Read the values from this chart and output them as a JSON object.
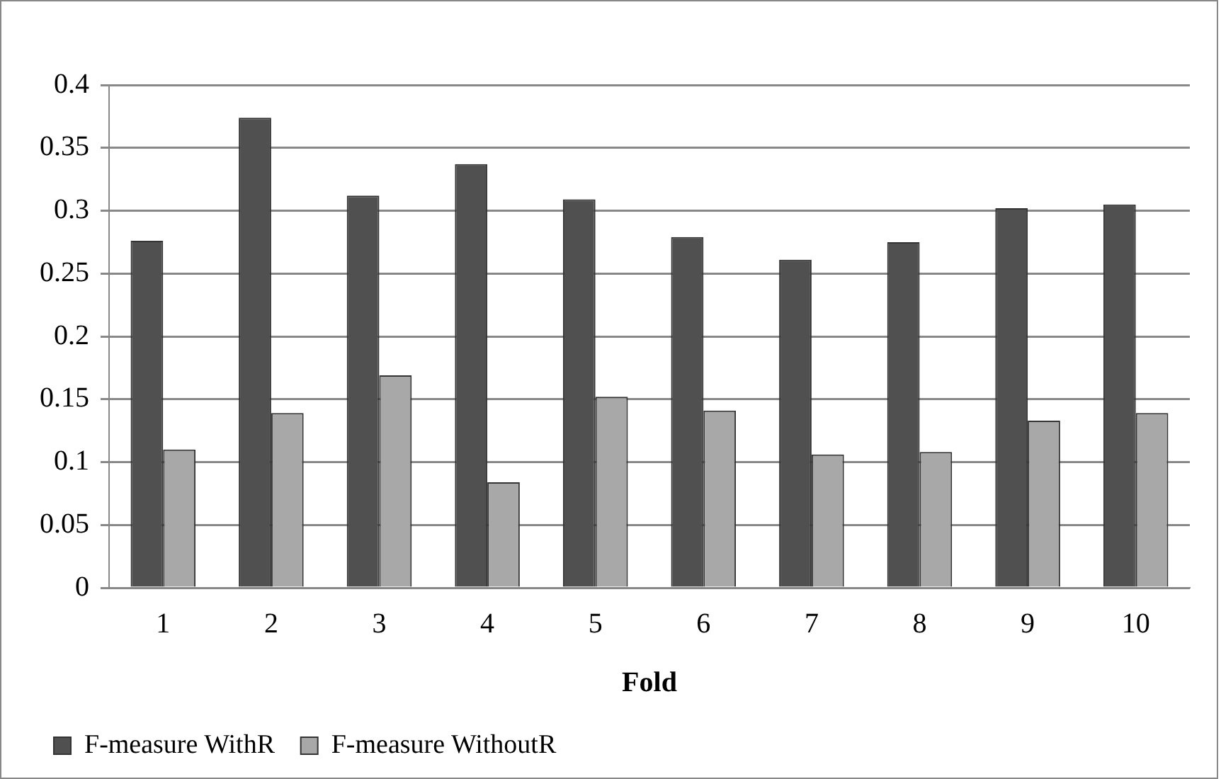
{
  "chart_data": {
    "type": "bar",
    "xlabel": "Fold",
    "categories": [
      "1",
      "2",
      "3",
      "4",
      "5",
      "6",
      "7",
      "8",
      "9",
      "10"
    ],
    "series": [
      {
        "name": "F-measure WithR",
        "color": "#505050",
        "values": [
          0.276,
          0.374,
          0.312,
          0.337,
          0.309,
          0.279,
          0.261,
          0.275,
          0.302,
          0.305
        ]
      },
      {
        "name": "F-measure WithoutR",
        "color": "#a8a8a8",
        "values": [
          0.11,
          0.139,
          0.169,
          0.084,
          0.152,
          0.141,
          0.106,
          0.108,
          0.133,
          0.139
        ]
      }
    ],
    "ylim": [
      0,
      0.4
    ],
    "yticks": [
      0,
      0.05,
      0.1,
      0.15,
      0.2,
      0.25,
      0.3,
      0.35,
      0.4
    ],
    "grid": "y",
    "legend": "bottom left"
  }
}
